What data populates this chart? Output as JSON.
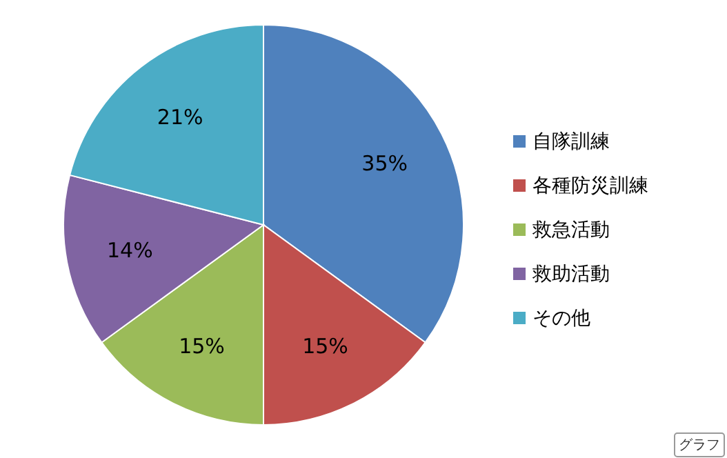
{
  "chart_data": {
    "type": "pie",
    "categories": [
      "自隊訓練",
      "各種防災訓練",
      "救急活動",
      "救助活動",
      "その他"
    ],
    "values": [
      35,
      15,
      15,
      14,
      21
    ],
    "colors": [
      "#4f81bd",
      "#c0504d",
      "#9bbb59",
      "#8064a2",
      "#4bacc6"
    ],
    "value_labels": [
      "35%",
      "15%",
      "15%",
      "14%",
      "21%"
    ],
    "legend": "right",
    "annotations": [
      "グラフ"
    ]
  }
}
